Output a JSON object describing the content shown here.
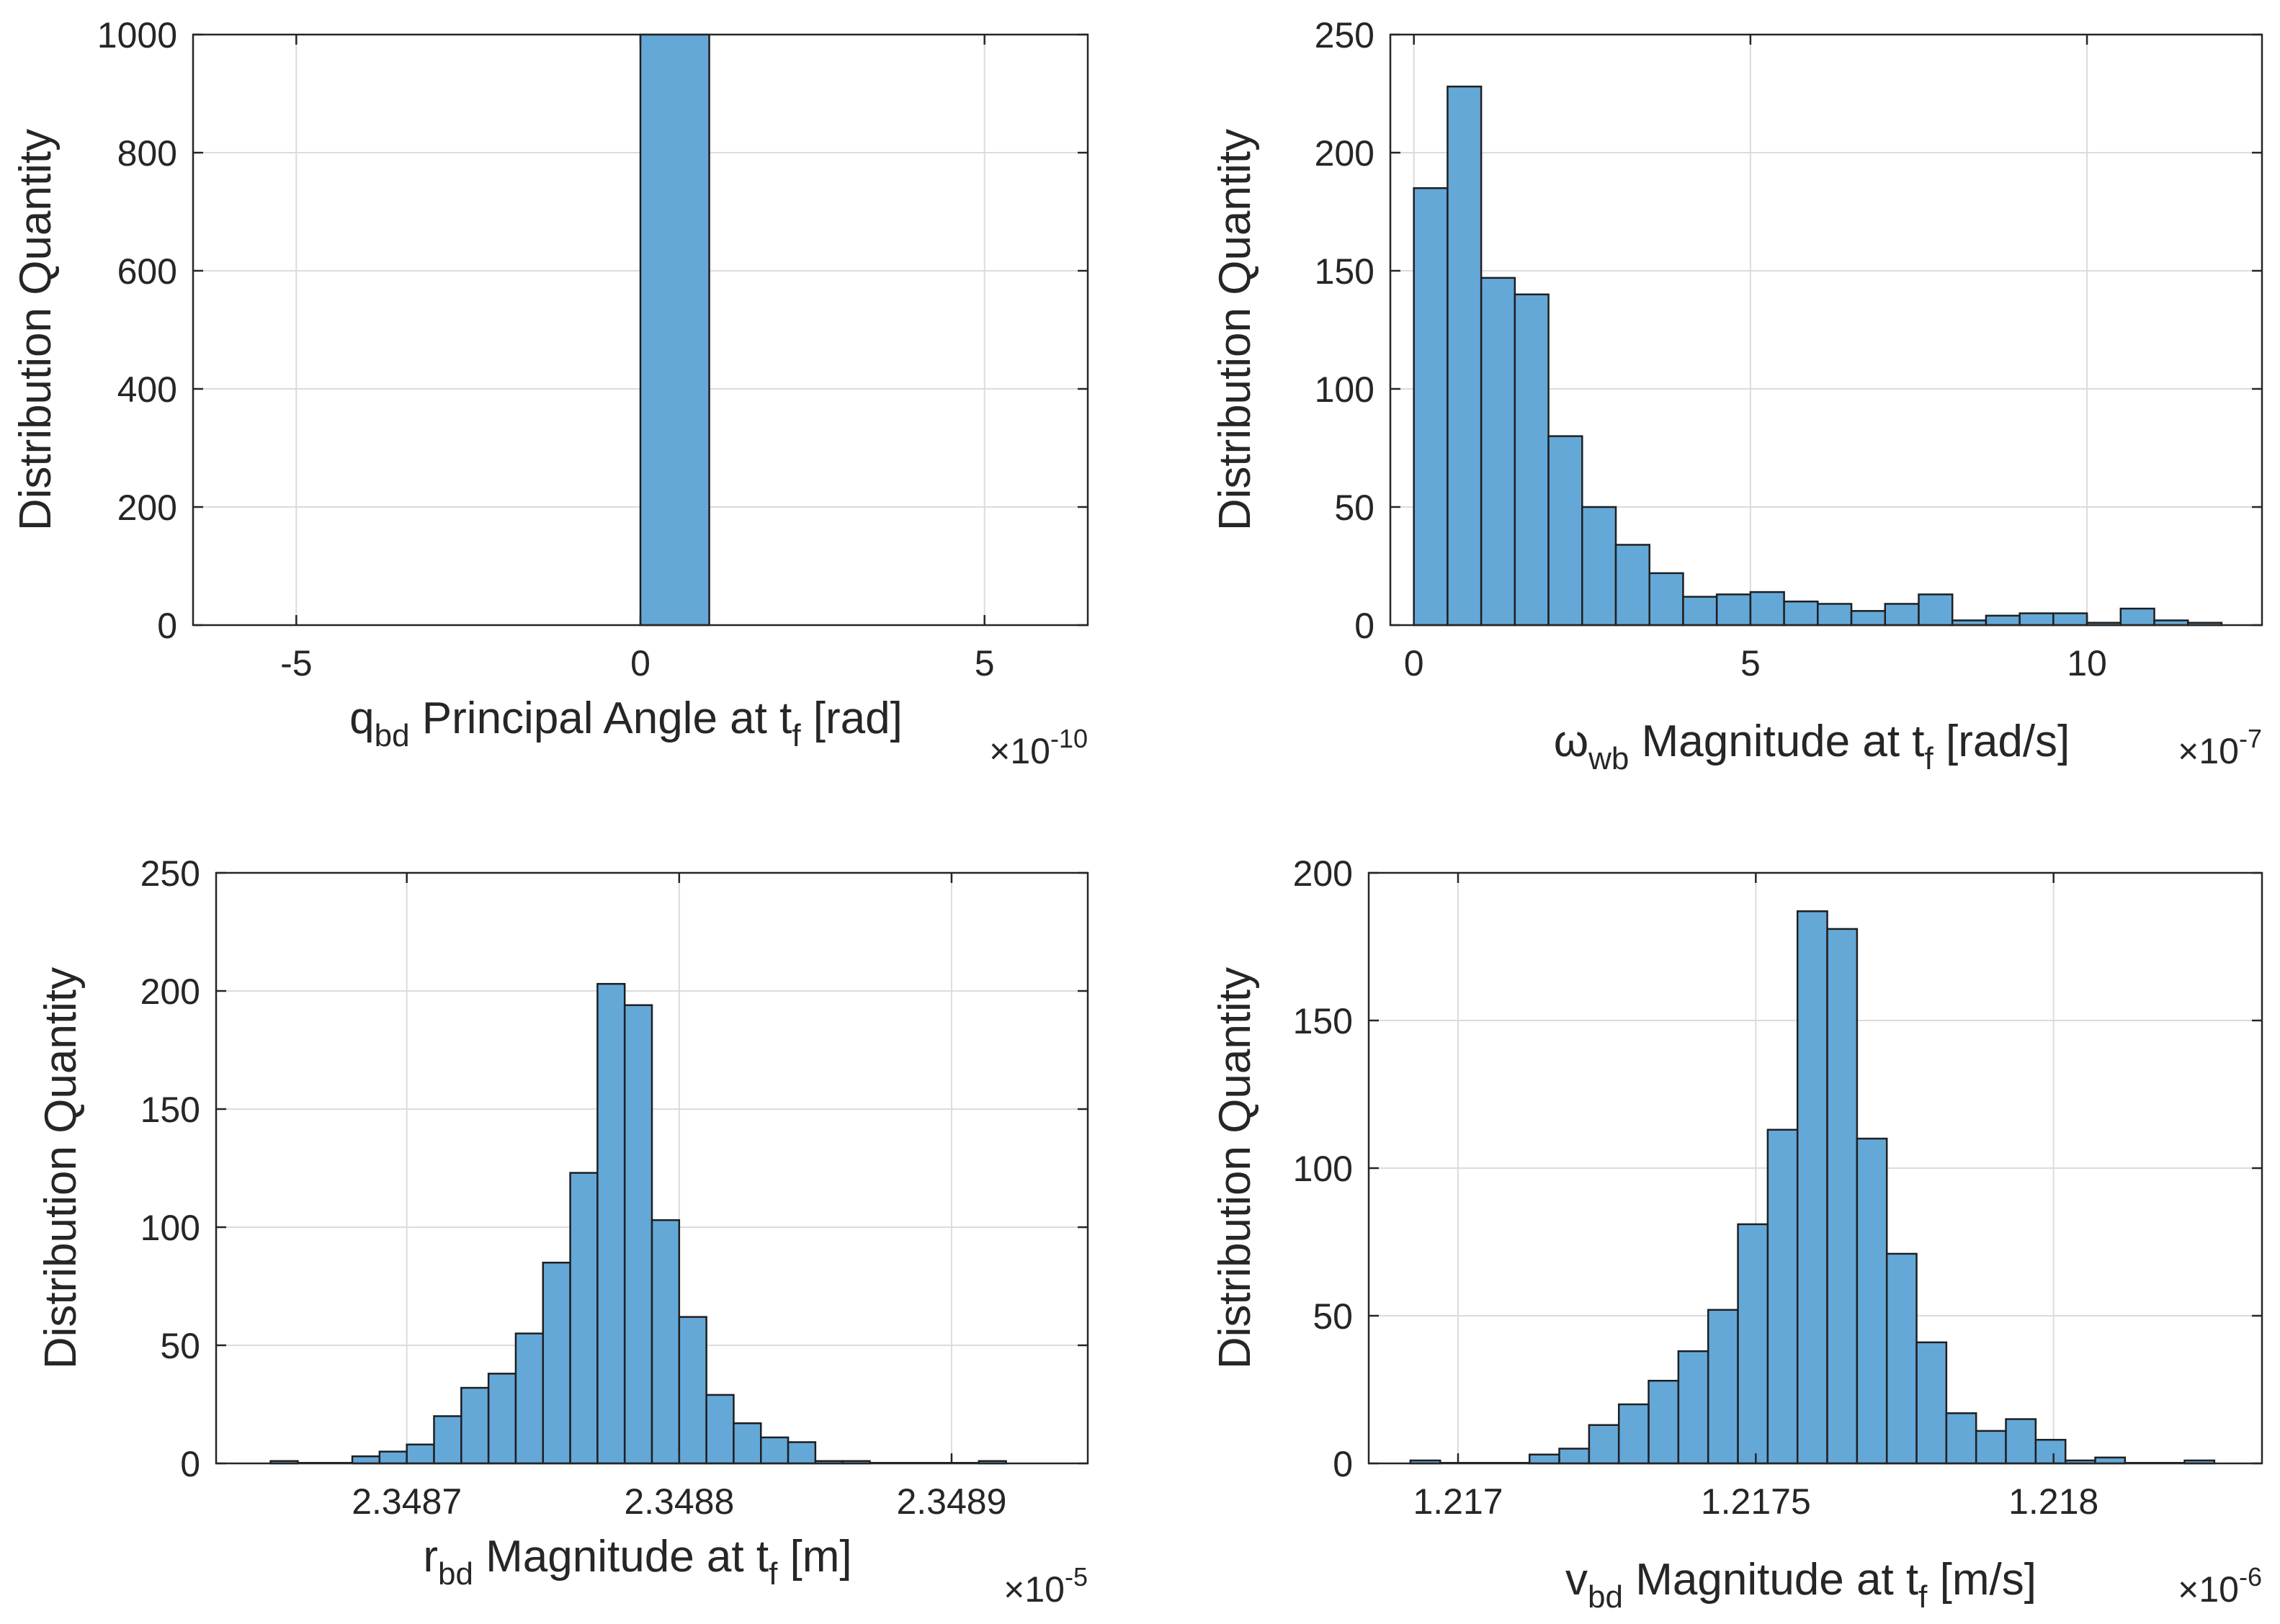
{
  "colors": {
    "bar_fill": "#64a8d8",
    "bar_edge": "#1f1f1f",
    "grid": "#dcdcdc",
    "axis": "#262626",
    "text": "#262626",
    "background": "#ffffff"
  },
  "chart_data": [
    {
      "type": "bar",
      "title": "",
      "ylabel": "Distribution Quantity",
      "xlabel": {
        "base": "q",
        "sub": "bd",
        "mid": " Principal Angle at t",
        "sub2": "f",
        "tail": " [rad]"
      },
      "multiplier": {
        "prefix": "×10",
        "exponent": "-10"
      },
      "xlim": [
        -6.5,
        6.5
      ],
      "ylim": [
        0,
        1000
      ],
      "xticks": [
        -5,
        0,
        5
      ],
      "xtick_labels": [
        "-5",
        "0",
        "5"
      ],
      "yticks": [
        0,
        200,
        400,
        600,
        800,
        1000
      ],
      "ytick_labels": [
        "0",
        "200",
        "400",
        "600",
        "800",
        "1000"
      ],
      "grid": true,
      "bin_start": 0,
      "bin_width": 1,
      "values": [
        1000
      ]
    },
    {
      "type": "bar",
      "title": "",
      "ylabel": "Distribution Quantity",
      "xlabel": {
        "base": "ω",
        "sub": "wb",
        "mid": " Magnitude at t",
        "sub2": "f",
        "tail": " [rad/s]"
      },
      "multiplier": {
        "prefix": "×10",
        "exponent": "-7"
      },
      "xlim": [
        -0.35,
        12.6
      ],
      "ylim": [
        0,
        250
      ],
      "xticks": [
        0,
        5,
        10
      ],
      "xtick_labels": [
        "0",
        "5",
        "10"
      ],
      "yticks": [
        0,
        50,
        100,
        150,
        200,
        250
      ],
      "ytick_labels": [
        "0",
        "50",
        "100",
        "150",
        "200",
        "250"
      ],
      "grid": true,
      "bin_start": 0,
      "bin_width": 0.5,
      "values": [
        185,
        228,
        147,
        140,
        80,
        50,
        34,
        22,
        12,
        13,
        14,
        10,
        9,
        6,
        9,
        13,
        2,
        4,
        5,
        5,
        1,
        7,
        2,
        1
      ]
    },
    {
      "type": "bar",
      "title": "",
      "ylabel": "Distribution Quantity",
      "xlabel": {
        "base": "r",
        "sub": "bd",
        "mid": " Magnitude at t",
        "sub2": "f",
        "tail": " [m]"
      },
      "multiplier": {
        "prefix": "×10",
        "exponent": "-5"
      },
      "xlim": [
        2.34863,
        2.34895
      ],
      "ylim": [
        0,
        250
      ],
      "xticks": [
        2.3487,
        2.3488,
        2.3489
      ],
      "xtick_labels": [
        "2.3487",
        "2.3488",
        "2.3489"
      ],
      "yticks": [
        0,
        50,
        100,
        150,
        200,
        250
      ],
      "ytick_labels": [
        "0",
        "50",
        "100",
        "150",
        "200",
        "250"
      ],
      "grid": true,
      "bin_start": 2.34865,
      "bin_width": 1e-05,
      "values": [
        1,
        0,
        0,
        3,
        5,
        8,
        20,
        32,
        38,
        55,
        85,
        123,
        203,
        194,
        103,
        62,
        29,
        17,
        11,
        9,
        1,
        1,
        0,
        0,
        0,
        0,
        1
      ]
    },
    {
      "type": "bar",
      "title": "",
      "ylabel": "Distribution Quantity",
      "xlabel": {
        "base": "v",
        "sub": "bd",
        "mid": " Magnitude at t",
        "sub2": "f",
        "tail": " [m/s]"
      },
      "multiplier": {
        "prefix": "×10",
        "exponent": "-6"
      },
      "xlim": [
        1.21685,
        1.21835
      ],
      "ylim": [
        0,
        200
      ],
      "xticks": [
        1.217,
        1.2175,
        1.218
      ],
      "xtick_labels": [
        "1.217",
        "1.2175",
        "1.218"
      ],
      "yticks": [
        0,
        50,
        100,
        150,
        200
      ],
      "ytick_labels": [
        "0",
        "50",
        "100",
        "150",
        "200"
      ],
      "grid": true,
      "bin_start": 1.21692,
      "bin_width": 5e-05,
      "values": [
        1,
        0,
        0,
        0,
        3,
        5,
        13,
        20,
        28,
        38,
        52,
        81,
        113,
        187,
        181,
        110,
        71,
        41,
        17,
        11,
        15,
        8,
        1,
        2,
        0,
        0,
        1
      ]
    }
  ]
}
